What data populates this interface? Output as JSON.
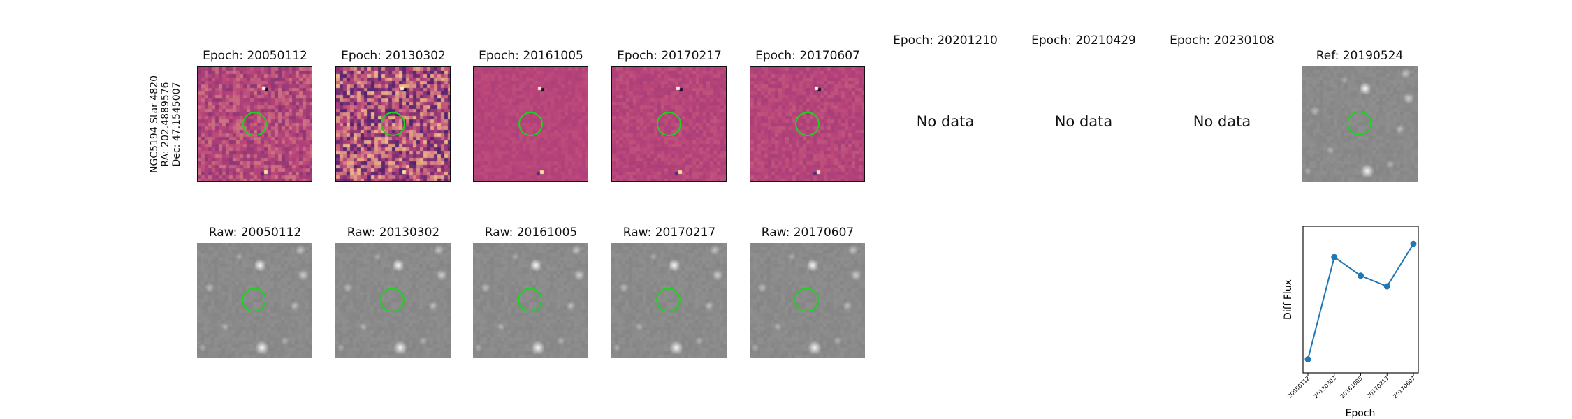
{
  "row_label": {
    "line1": "NGC5194 Star 4820",
    "line2": "RA: 202.4889576",
    "line3": "Dec: 47.1545007"
  },
  "epoch_titles": [
    "Epoch: 20050112",
    "Epoch: 20130302",
    "Epoch: 20161005",
    "Epoch: 20170217",
    "Epoch: 20170607",
    "Epoch: 20201210",
    "Epoch: 20210429",
    "Epoch: 20230108"
  ],
  "ref_title": "Ref: 20190524",
  "no_data_text": "No data",
  "raw_titles": [
    "Raw: 20050112",
    "Raw: 20130302",
    "Raw: 20161005",
    "Raw: 20170217",
    "Raw: 20170607"
  ],
  "colors": {
    "diff_base": "#b8437a",
    "diff_noise_low": "#3b1d6e",
    "diff_noise_high": "#f7d08a",
    "raw_base": "#8a8a8a",
    "aperture": "#1fd11f",
    "line": "#1f77b4"
  },
  "chart_data": {
    "type": "line",
    "categories": [
      "20050112",
      "20130302",
      "20161005",
      "20170217",
      "20170607"
    ],
    "series": [
      {
        "values": [
          0.05,
          0.82,
          0.68,
          0.6,
          0.92
        ]
      }
    ],
    "xlabel": "Epoch",
    "ylabel": "Diff Flux",
    "ylim": [
      0,
      1
    ],
    "grid": false
  }
}
